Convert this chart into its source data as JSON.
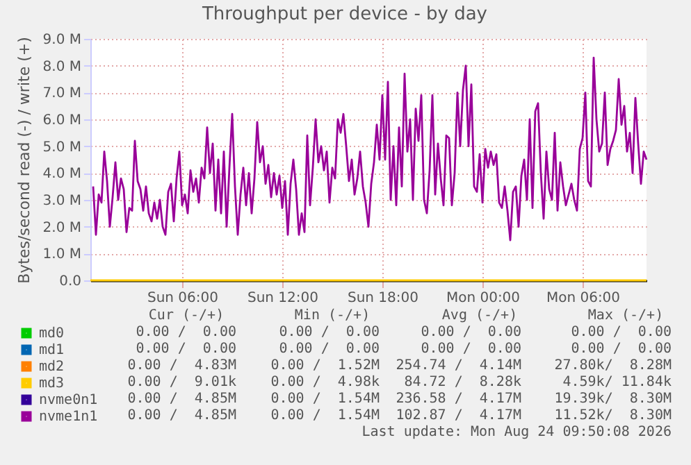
{
  "chart_data": {
    "type": "line",
    "title": "Throughput per device - by day",
    "ylabel": "Bytes/second read (-) / write (+)",
    "xlim": [
      "2026-08-23T00:30",
      "2026-08-24T09:50"
    ],
    "xticks": [
      {
        "value": "2026-08-23T06:00",
        "label": "Sun 06:00"
      },
      {
        "value": "2026-08-23T12:00",
        "label": "Sun 12:00"
      },
      {
        "value": "2026-08-23T18:00",
        "label": "Sun 18:00"
      },
      {
        "value": "2026-08-24T00:00",
        "label": "Mon 00:00"
      },
      {
        "value": "2026-08-24T06:00",
        "label": "Mon 06:00"
      }
    ],
    "ylim": [
      0,
      9
    ],
    "yticks": [
      {
        "value": 0,
        "label": "0.0"
      },
      {
        "value": 1,
        "label": "1.0 M"
      },
      {
        "value": 2,
        "label": "2.0 M"
      },
      {
        "value": 3,
        "label": "3.0 M"
      },
      {
        "value": 4,
        "label": "4.0 M"
      },
      {
        "value": 5,
        "label": "5.0 M"
      },
      {
        "value": 6,
        "label": "6.0 M"
      },
      {
        "value": 7,
        "label": "7.0 M"
      },
      {
        "value": 8,
        "label": "8.0 M"
      },
      {
        "value": 9,
        "label": "9.0 M"
      }
    ],
    "grid": true,
    "legend": "bottom",
    "marker": "none",
    "line_style": "solid",
    "x": [
      "2026-08-23T00:40",
      "2026-08-23T00:50",
      "2026-08-23T01:00",
      "2026-08-23T01:10",
      "2026-08-23T01:20",
      "2026-08-23T01:30",
      "2026-08-23T01:40",
      "2026-08-23T01:50",
      "2026-08-23T02:00",
      "2026-08-23T02:10",
      "2026-08-23T02:20",
      "2026-08-23T02:30",
      "2026-08-23T02:40",
      "2026-08-23T02:50",
      "2026-08-23T03:00",
      "2026-08-23T03:10",
      "2026-08-23T03:20",
      "2026-08-23T03:30",
      "2026-08-23T03:40",
      "2026-08-23T03:50",
      "2026-08-23T04:00",
      "2026-08-23T04:10",
      "2026-08-23T04:20",
      "2026-08-23T04:30",
      "2026-08-23T04:40",
      "2026-08-23T04:50",
      "2026-08-23T05:00",
      "2026-08-23T05:10",
      "2026-08-23T05:20",
      "2026-08-23T05:30",
      "2026-08-23T05:40",
      "2026-08-23T05:50",
      "2026-08-23T06:00",
      "2026-08-23T06:10",
      "2026-08-23T06:20",
      "2026-08-23T06:30",
      "2026-08-23T06:40",
      "2026-08-23T06:50",
      "2026-08-23T07:00",
      "2026-08-23T07:10",
      "2026-08-23T07:20",
      "2026-08-23T07:30",
      "2026-08-23T07:40",
      "2026-08-23T07:50",
      "2026-08-23T08:00",
      "2026-08-23T08:10",
      "2026-08-23T08:20",
      "2026-08-23T08:30",
      "2026-08-23T08:40",
      "2026-08-23T08:50",
      "2026-08-23T09:00",
      "2026-08-23T09:10",
      "2026-08-23T09:20",
      "2026-08-23T09:30",
      "2026-08-23T09:40",
      "2026-08-23T09:50",
      "2026-08-23T10:00",
      "2026-08-23T10:10",
      "2026-08-23T10:20",
      "2026-08-23T10:30",
      "2026-08-23T10:40",
      "2026-08-23T10:50",
      "2026-08-23T11:00",
      "2026-08-23T11:10",
      "2026-08-23T11:20",
      "2026-08-23T11:30",
      "2026-08-23T11:40",
      "2026-08-23T11:50",
      "2026-08-23T12:00",
      "2026-08-23T12:10",
      "2026-08-23T12:20",
      "2026-08-23T12:30",
      "2026-08-23T12:40",
      "2026-08-23T12:50",
      "2026-08-23T13:00",
      "2026-08-23T13:10",
      "2026-08-23T13:20",
      "2026-08-23T13:30",
      "2026-08-23T13:40",
      "2026-08-23T13:50",
      "2026-08-23T14:00",
      "2026-08-23T14:10",
      "2026-08-23T14:20",
      "2026-08-23T14:30",
      "2026-08-23T14:40",
      "2026-08-23T14:50",
      "2026-08-23T15:00",
      "2026-08-23T15:10",
      "2026-08-23T15:20",
      "2026-08-23T15:30",
      "2026-08-23T15:40",
      "2026-08-23T15:50",
      "2026-08-23T16:00",
      "2026-08-23T16:10",
      "2026-08-23T16:20",
      "2026-08-23T16:30",
      "2026-08-23T16:40",
      "2026-08-23T16:50",
      "2026-08-23T17:00",
      "2026-08-23T17:10",
      "2026-08-23T17:20",
      "2026-08-23T17:30",
      "2026-08-23T17:40",
      "2026-08-23T17:50",
      "2026-08-23T18:00",
      "2026-08-23T18:10",
      "2026-08-23T18:20",
      "2026-08-23T18:30",
      "2026-08-23T18:40",
      "2026-08-23T18:50",
      "2026-08-23T19:00",
      "2026-08-23T19:10",
      "2026-08-23T19:20",
      "2026-08-23T19:30",
      "2026-08-23T19:40",
      "2026-08-23T19:50",
      "2026-08-23T20:00",
      "2026-08-23T20:10",
      "2026-08-23T20:20",
      "2026-08-23T20:30",
      "2026-08-23T20:40",
      "2026-08-23T20:50",
      "2026-08-23T21:00",
      "2026-08-23T21:10",
      "2026-08-23T21:20",
      "2026-08-23T21:30",
      "2026-08-23T21:40",
      "2026-08-23T21:50",
      "2026-08-23T22:00",
      "2026-08-23T22:10",
      "2026-08-23T22:20",
      "2026-08-23T22:30",
      "2026-08-23T22:40",
      "2026-08-23T22:50",
      "2026-08-23T23:00",
      "2026-08-23T23:10",
      "2026-08-23T23:20",
      "2026-08-23T23:30",
      "2026-08-23T23:40",
      "2026-08-23T23:50",
      "2026-08-24T00:00",
      "2026-08-24T00:10",
      "2026-08-24T00:20",
      "2026-08-24T00:30",
      "2026-08-24T00:40",
      "2026-08-24T00:50",
      "2026-08-24T01:00",
      "2026-08-24T01:10",
      "2026-08-24T01:20",
      "2026-08-24T01:30",
      "2026-08-24T01:40",
      "2026-08-24T01:50",
      "2026-08-24T02:00",
      "2026-08-24T02:10",
      "2026-08-24T02:20",
      "2026-08-24T02:30",
      "2026-08-24T02:40",
      "2026-08-24T02:50",
      "2026-08-24T03:00",
      "2026-08-24T03:10",
      "2026-08-24T03:20",
      "2026-08-24T03:30",
      "2026-08-24T03:40",
      "2026-08-24T03:50",
      "2026-08-24T04:00",
      "2026-08-24T04:10",
      "2026-08-24T04:20",
      "2026-08-24T04:30",
      "2026-08-24T04:40",
      "2026-08-24T04:50",
      "2026-08-24T05:00",
      "2026-08-24T05:10",
      "2026-08-24T05:20",
      "2026-08-24T05:30",
      "2026-08-24T05:40",
      "2026-08-24T05:50",
      "2026-08-24T06:00",
      "2026-08-24T06:10",
      "2026-08-24T06:20",
      "2026-08-24T06:30",
      "2026-08-24T06:40",
      "2026-08-24T06:50",
      "2026-08-24T07:00",
      "2026-08-24T07:10",
      "2026-08-24T07:20",
      "2026-08-24T07:30",
      "2026-08-24T07:40",
      "2026-08-24T07:50",
      "2026-08-24T08:00",
      "2026-08-24T08:10",
      "2026-08-24T08:20",
      "2026-08-24T08:30",
      "2026-08-24T08:40",
      "2026-08-24T08:50",
      "2026-08-24T09:00",
      "2026-08-24T09:10",
      "2026-08-24T09:20",
      "2026-08-24T09:30",
      "2026-08-24T09:40",
      "2026-08-24T09:50"
    ],
    "series": [
      {
        "name": "md0",
        "color": "#00cc00",
        "values": [
          null,
          null,
          null,
          null,
          null,
          null,
          null,
          null,
          null,
          null,
          null,
          null,
          null,
          null,
          null,
          null,
          null,
          null,
          null,
          null,
          null,
          null,
          null,
          null,
          null,
          null,
          null,
          null,
          null,
          null,
          null,
          null,
          null,
          null,
          null,
          null,
          null,
          null,
          null,
          null,
          null,
          null,
          null,
          null,
          null,
          null,
          null,
          null,
          null,
          null,
          null,
          null,
          null,
          null,
          null,
          null,
          null,
          null,
          null,
          null,
          null,
          null,
          null,
          null,
          null,
          null,
          null,
          null,
          null,
          null,
          null,
          null,
          null,
          null,
          null,
          null,
          null,
          null,
          null,
          null,
          null,
          null,
          null,
          null,
          null,
          null,
          null,
          null,
          null,
          null,
          null,
          null,
          null,
          null,
          null,
          null,
          null,
          null,
          null,
          null,
          null,
          null,
          null,
          null,
          null,
          null,
          null,
          null,
          null,
          null,
          null,
          null,
          null,
          null,
          null,
          null,
          null,
          null,
          null,
          null,
          null,
          null,
          null,
          null,
          null,
          null,
          null,
          null,
          null,
          null,
          null,
          null,
          null,
          null,
          null,
          null,
          null,
          null,
          null,
          null,
          null,
          null,
          null,
          null,
          null,
          null,
          null,
          null,
          null,
          null,
          null,
          null,
          null,
          null,
          null,
          null,
          null,
          null,
          null,
          null,
          null,
          null,
          null,
          null,
          null,
          null,
          null,
          null,
          null,
          null,
          null,
          null,
          null,
          null,
          null,
          null,
          null,
          null,
          null,
          null,
          null,
          null,
          null,
          null,
          null,
          null,
          null,
          null,
          null,
          null,
          null,
          null,
          null,
          null,
          null,
          null,
          null,
          null,
          null,
          null
        ]
      },
      {
        "name": "md1",
        "color": "#0066b3",
        "values": [
          null,
          null,
          null,
          null,
          null,
          null,
          null,
          null,
          null,
          null,
          null,
          null,
          null,
          null,
          null,
          null,
          null,
          null,
          null,
          null,
          null,
          null,
          null,
          null,
          null,
          null,
          null,
          null,
          null,
          null,
          null,
          null,
          null,
          null,
          null,
          null,
          null,
          null,
          null,
          null,
          null,
          null,
          null,
          null,
          null,
          null,
          null,
          null,
          null,
          null,
          null,
          null,
          null,
          null,
          null,
          null,
          null,
          null,
          null,
          null,
          null,
          null,
          null,
          null,
          null,
          null,
          null,
          null,
          null,
          null,
          null,
          null,
          null,
          null,
          null,
          null,
          null,
          null,
          null,
          null,
          null,
          null,
          null,
          null,
          null,
          null,
          null,
          null,
          null,
          null,
          null,
          null,
          null,
          null,
          null,
          null,
          null,
          null,
          null,
          null,
          null,
          null,
          null,
          null,
          null,
          null,
          null,
          null,
          null,
          null,
          null,
          null,
          null,
          null,
          null,
          null,
          null,
          null,
          null,
          null,
          null,
          null,
          null,
          null,
          null,
          null,
          null,
          null,
          null,
          null,
          null,
          null,
          null,
          null,
          null,
          null,
          null,
          null,
          null,
          null,
          null,
          null,
          null,
          null,
          null,
          null,
          null,
          null,
          null,
          null,
          null,
          null,
          null,
          null,
          null,
          null,
          null,
          null,
          null,
          null,
          null,
          null,
          null,
          null,
          null,
          null,
          null,
          null,
          null,
          null,
          null,
          null,
          null,
          null,
          null,
          null,
          null,
          null,
          null,
          null,
          null,
          null,
          null,
          null,
          null,
          null,
          null,
          null,
          null,
          null,
          null,
          null,
          null,
          null,
          null,
          null,
          null,
          null,
          null,
          null
        ]
      },
      {
        "name": "md2",
        "color": "#ff8000",
        "values": [
          null,
          null,
          null,
          null,
          null,
          null,
          null,
          null,
          null,
          null,
          null,
          null,
          null,
          null,
          null,
          null,
          null,
          null,
          null,
          null,
          null,
          null,
          null,
          null,
          null,
          null,
          null,
          null,
          null,
          null,
          null,
          null,
          null,
          null,
          null,
          null,
          null,
          null,
          null,
          null,
          null,
          null,
          null,
          null,
          null,
          null,
          null,
          null,
          null,
          null,
          null,
          null,
          null,
          null,
          null,
          null,
          null,
          null,
          null,
          null,
          null,
          null,
          null,
          null,
          null,
          null,
          null,
          null,
          null,
          null,
          null,
          null,
          null,
          null,
          null,
          null,
          null,
          null,
          null,
          null,
          null,
          null,
          null,
          null,
          null,
          null,
          null,
          null,
          null,
          null,
          null,
          null,
          null,
          null,
          null,
          null,
          null,
          null,
          null,
          null,
          null,
          null,
          null,
          null,
          null,
          null,
          null,
          null,
          null,
          null,
          null,
          null,
          null,
          null,
          null,
          null,
          null,
          null,
          null,
          null,
          null,
          null,
          null,
          null,
          null,
          null,
          null,
          null,
          null,
          null,
          null,
          null,
          null,
          null,
          null,
          null,
          null,
          null,
          null,
          null,
          null,
          null,
          null,
          null,
          null,
          null,
          null,
          null,
          null,
          null,
          null,
          null,
          null,
          null,
          null,
          null,
          null,
          null,
          null,
          null,
          null,
          null,
          null,
          null,
          null,
          null,
          null,
          null,
          null,
          null,
          null,
          null,
          null,
          null,
          null,
          null,
          null,
          null,
          null,
          null,
          null,
          null,
          null,
          null,
          null,
          null,
          null,
          null,
          null,
          null,
          null,
          null,
          null,
          null,
          null,
          null,
          null,
          null,
          null,
          null
        ]
      },
      {
        "name": "md3",
        "color": "#ffcc00",
        "x": [
          "2026-08-23T00:30",
          "2026-08-24T09:50"
        ],
        "values": [
          0,
          0
        ]
      },
      {
        "name": "nvme0n1",
        "color": "#330099",
        "values": [
          null,
          null,
          null,
          null,
          null,
          null,
          null,
          null,
          null,
          null,
          null,
          null,
          null,
          null,
          null,
          null,
          null,
          null,
          null,
          null,
          null,
          null,
          null,
          null,
          null,
          null,
          null,
          null,
          null,
          null,
          null,
          null,
          null,
          null,
          null,
          null,
          null,
          null,
          null,
          null,
          null,
          null,
          null,
          null,
          null,
          null,
          null,
          null,
          null,
          null,
          null,
          null,
          null,
          null,
          null,
          null,
          null,
          null,
          null,
          null,
          null,
          null,
          null,
          null,
          null,
          null,
          null,
          null,
          null,
          null,
          null,
          null,
          null,
          null,
          null,
          null,
          null,
          null,
          null,
          null,
          null,
          null,
          null,
          null,
          null,
          null,
          null,
          null,
          null,
          null,
          null,
          null,
          null,
          null,
          null,
          null,
          null,
          null,
          null,
          null,
          null,
          null,
          null,
          null,
          null,
          null,
          null,
          null,
          null,
          null,
          null,
          null,
          null,
          null,
          null,
          null,
          null,
          null,
          null,
          null,
          null,
          null,
          null,
          null,
          null,
          null,
          null,
          null,
          null,
          null,
          null,
          null,
          null,
          null,
          null,
          null,
          null,
          null,
          null,
          null,
          null,
          null,
          null,
          null,
          null,
          null,
          null,
          null,
          null,
          null,
          null,
          null,
          null,
          null,
          null,
          null,
          null,
          null,
          null,
          null,
          null,
          null,
          null,
          null,
          null,
          null,
          null,
          null,
          null,
          null,
          null,
          null,
          null,
          null,
          null,
          null,
          null,
          null,
          null,
          null,
          null,
          null,
          null,
          null,
          null,
          null,
          null,
          null,
          null,
          null,
          null,
          null,
          null,
          null,
          null,
          null,
          null,
          null,
          null,
          null
        ]
      },
      {
        "name": "nvme1n1",
        "color": "#990099",
        "values": [
          3.5,
          1.7,
          3.2,
          2.9,
          4.8,
          3.7,
          2.0,
          3.1,
          4.4,
          3.0,
          3.8,
          3.4,
          1.8,
          2.7,
          2.6,
          5.2,
          3.7,
          3.4,
          2.6,
          3.5,
          2.5,
          2.2,
          2.9,
          2.3,
          3.0,
          2.0,
          1.7,
          3.3,
          3.6,
          2.2,
          3.8,
          4.8,
          2.8,
          3.2,
          2.5,
          4.1,
          3.3,
          3.8,
          2.9,
          4.2,
          3.8,
          5.7,
          4.0,
          5.1,
          2.6,
          4.5,
          2.5,
          4.8,
          2.0,
          4.2,
          6.2,
          3.5,
          1.7,
          3.2,
          4.2,
          2.8,
          4.0,
          2.5,
          3.8,
          5.9,
          4.4,
          5.0,
          3.6,
          4.3,
          3.1,
          4.0,
          3.2,
          3.9,
          2.7,
          3.7,
          1.7,
          3.6,
          4.5,
          3.4,
          1.7,
          2.5,
          1.8,
          5.4,
          2.8,
          4.2,
          6.0,
          4.4,
          5.0,
          4.1,
          4.8,
          2.9,
          4.2,
          3.8,
          6.0,
          5.5,
          6.2,
          5.0,
          3.7,
          4.5,
          3.2,
          3.8,
          4.8,
          3.5,
          2.9,
          2.0,
          3.6,
          4.4,
          5.8,
          4.5,
          6.9,
          4.5,
          7.4,
          3.0,
          5.0,
          2.8,
          5.7,
          3.5,
          7.7,
          4.8,
          6.0,
          3.0,
          6.4,
          5.2,
          6.9,
          3.0,
          2.5,
          4.1,
          6.9,
          3.2,
          5.1,
          3.8,
          2.8,
          5.4,
          5.3,
          2.8,
          4.0,
          7.0,
          5.0,
          7.1,
          8.0,
          5.0,
          7.3,
          3.5,
          3.3,
          4.7,
          2.9,
          4.9,
          4.2,
          4.8,
          4.3,
          4.7,
          2.9,
          2.7,
          3.5,
          2.6,
          1.5,
          3.3,
          3.5,
          2.0,
          3.9,
          4.5,
          3.0,
          6.0,
          2.7,
          6.3,
          6.6,
          4.0,
          2.3,
          4.8,
          3.4,
          3.0,
          5.5,
          2.6,
          4.4,
          3.5,
          2.8,
          3.2,
          3.6,
          3.0,
          2.6,
          4.9,
          5.3,
          7.0,
          3.7,
          3.5,
          8.3,
          6.0,
          4.8,
          5.1,
          7.0,
          4.3,
          4.9,
          5.2,
          5.6,
          7.5,
          5.8,
          6.5,
          4.8,
          5.5,
          4.0,
          6.8,
          5.1,
          3.6,
          4.8,
          4.5
        ]
      }
    ],
    "annotations": [
      "Cur (-/+)",
      "Min (-/+)",
      "Avg (-/+)",
      "Max (-/+)",
      "0.00 /  0.00",
      "0.00 /  0.00",
      "0.00 /  0.00",
      "0.00 /  0.00",
      "0.00 /  0.00",
      "0.00 /  0.00",
      "0.00 /  0.00",
      "0.00 /  0.00",
      "0.00 /  4.83M",
      "0.00 /  1.52M",
      "254.74 /  4.14M",
      "27.80k/  8.28M",
      "0.00 /  9.01k",
      "0.00 /  4.98k",
      "84.72 /  8.28k",
      "4.59k/ 11.84k",
      "0.00 /  4.85M",
      "0.00 /  1.54M",
      "236.58 /  4.17M",
      "19.39k/  8.30M",
      "0.00 /  4.85M",
      "0.00 /  1.54M",
      "102.87 /  4.17M",
      "11.52k/  8.30M",
      "Last update: Mon Aug 24 09:50:08 2026"
    ]
  }
}
